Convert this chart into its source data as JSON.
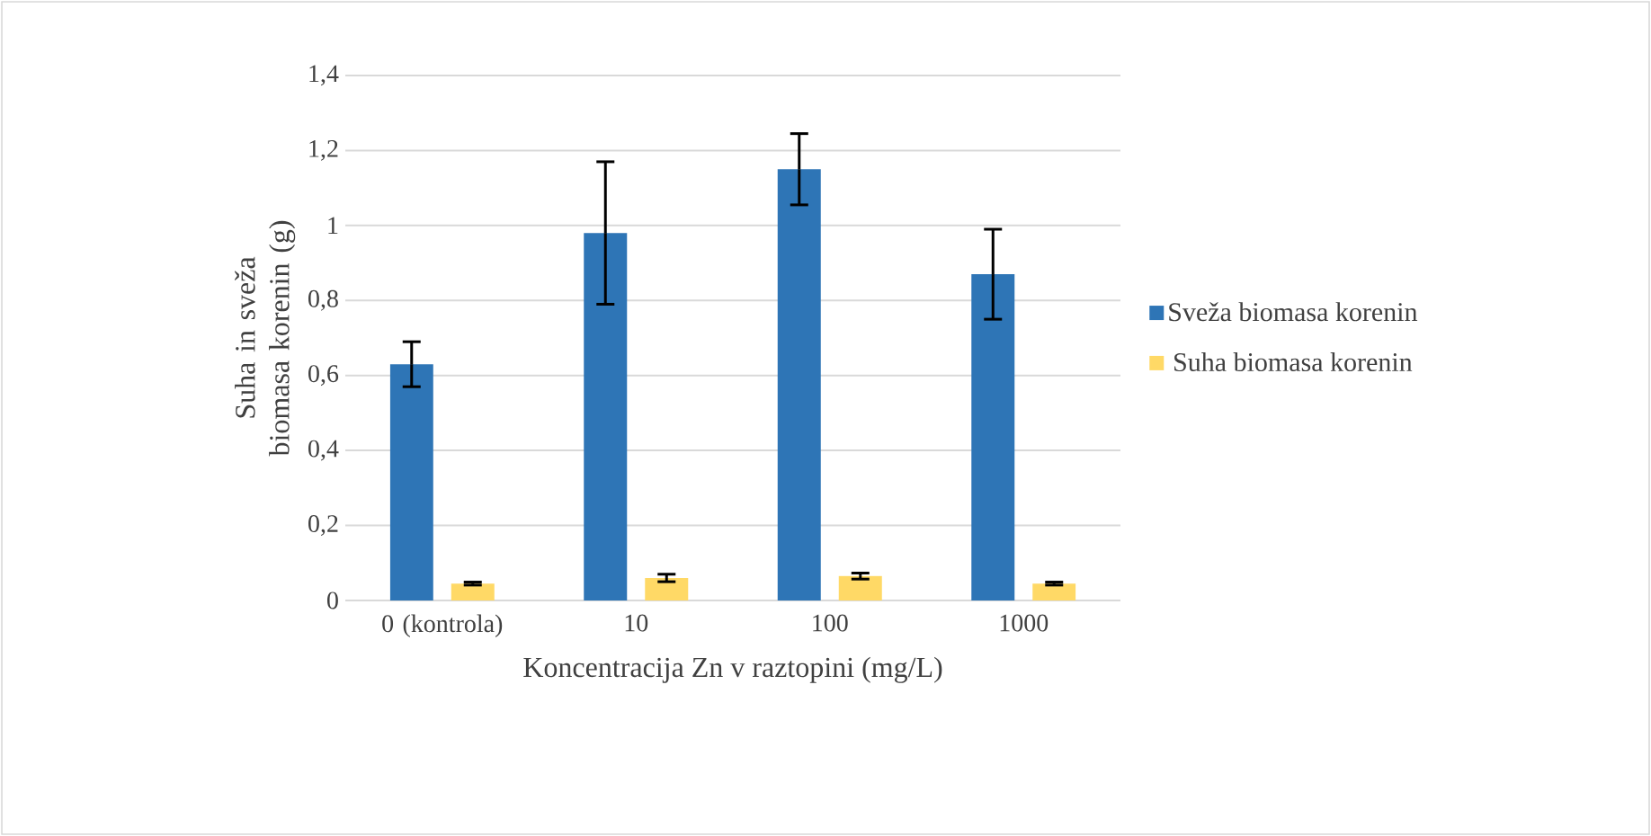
{
  "chart_data": {
    "type": "bar",
    "xlabel": "Koncentracija Zn v raztopini (mg/L)",
    "ylabel": "Suha in sveža biomasa korenin (g)",
    "categories": [
      "0 (kontrola)",
      "10",
      "100",
      "1000"
    ],
    "series": [
      {
        "name": "Sveža biomasa korenin",
        "color": "#2e75b6",
        "values": [
          0.63,
          0.98,
          1.15,
          0.87
        ],
        "errors": [
          0.06,
          0.19,
          0.095,
          0.12
        ]
      },
      {
        "name": "Suha biomasa korenin",
        "color": "#ffd966",
        "values": [
          0.045,
          0.06,
          0.065,
          0.045
        ],
        "errors": [
          0.004,
          0.01,
          0.008,
          0.004
        ]
      }
    ],
    "ylim": [
      0,
      1.4
    ],
    "yticks": [
      {
        "value": 0,
        "label": "0"
      },
      {
        "value": 0.2,
        "label": "0,2"
      },
      {
        "value": 0.4,
        "label": "0,4"
      },
      {
        "value": 0.6,
        "label": "0,6"
      },
      {
        "value": 0.8,
        "label": "0,8"
      },
      {
        "value": 1,
        "label": "1"
      },
      {
        "value": 1.2,
        "label": "1,2"
      },
      {
        "value": 1.4,
        "label": "1,4"
      }
    ],
    "grid": "y",
    "legend": "right"
  }
}
